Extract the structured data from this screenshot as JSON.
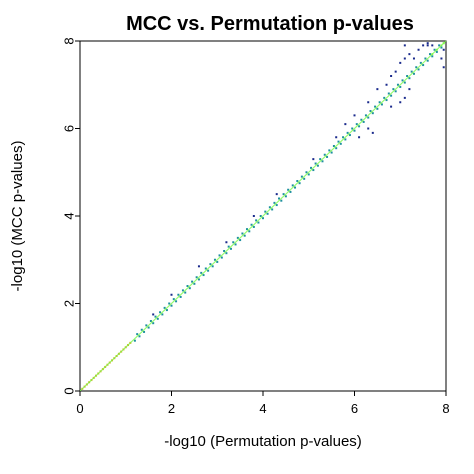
{
  "chart_data": {
    "type": "scatter",
    "title": "MCC vs. Permutation p-values",
    "xlabel": "-log10 (Permutation p-values)",
    "ylabel": "-log10 (MCC p-values)",
    "xlim": [
      0,
      8
    ],
    "ylim": [
      0,
      8
    ],
    "x_ticks": [
      0,
      2,
      4,
      6,
      8
    ],
    "y_ticks": [
      0,
      2,
      4,
      6,
      8
    ],
    "grid": false,
    "reference_line": {
      "from": [
        0,
        0
      ],
      "to": [
        8,
        8
      ],
      "color": "#7CFC4C"
    },
    "colors": {
      "low": "#1a2a8c",
      "mid": "#1f8fa0",
      "high": "#8cf05a",
      "orange": "#e0a020"
    },
    "series": [
      {
        "points": [
          [
            0.05,
            0.05
          ],
          [
            0.1,
            0.1
          ],
          [
            0.15,
            0.15
          ],
          [
            0.2,
            0.2
          ],
          [
            0.25,
            0.25
          ],
          [
            0.3,
            0.3
          ],
          [
            0.35,
            0.35
          ],
          [
            0.4,
            0.4
          ],
          [
            0.45,
            0.45
          ],
          [
            0.5,
            0.5
          ],
          [
            0.55,
            0.55
          ],
          [
            0.6,
            0.6
          ],
          [
            0.65,
            0.65
          ],
          [
            0.7,
            0.7
          ],
          [
            0.75,
            0.75
          ],
          [
            0.8,
            0.8
          ],
          [
            0.85,
            0.85
          ],
          [
            0.9,
            0.9
          ],
          [
            0.95,
            0.95
          ],
          [
            1.0,
            1.0
          ],
          [
            1.05,
            1.05
          ],
          [
            1.1,
            1.1
          ],
          [
            1.2,
            1.15
          ],
          [
            1.25,
            1.3
          ],
          [
            1.3,
            1.25
          ],
          [
            1.35,
            1.4
          ],
          [
            1.4,
            1.35
          ],
          [
            1.45,
            1.5
          ],
          [
            1.5,
            1.45
          ],
          [
            1.55,
            1.6
          ],
          [
            1.6,
            1.55
          ],
          [
            1.65,
            1.7
          ],
          [
            1.7,
            1.65
          ],
          [
            1.75,
            1.8
          ],
          [
            1.8,
            1.75
          ],
          [
            1.85,
            1.9
          ],
          [
            1.9,
            1.85
          ],
          [
            1.95,
            2.0
          ],
          [
            2.0,
            1.95
          ],
          [
            2.05,
            2.1
          ],
          [
            2.1,
            2.05
          ],
          [
            2.15,
            2.2
          ],
          [
            2.2,
            2.15
          ],
          [
            2.25,
            2.3
          ],
          [
            2.3,
            2.25
          ],
          [
            2.35,
            2.4
          ],
          [
            2.4,
            2.35
          ],
          [
            2.45,
            2.5
          ],
          [
            2.5,
            2.45
          ],
          [
            2.55,
            2.6
          ],
          [
            2.6,
            2.55
          ],
          [
            2.65,
            2.7
          ],
          [
            2.7,
            2.65
          ],
          [
            2.75,
            2.8
          ],
          [
            2.8,
            2.75
          ],
          [
            2.85,
            2.9
          ],
          [
            2.9,
            2.85
          ],
          [
            2.95,
            3.0
          ],
          [
            3.0,
            2.95
          ],
          [
            3.05,
            3.1
          ],
          [
            3.1,
            3.05
          ],
          [
            3.15,
            3.2
          ],
          [
            3.2,
            3.15
          ],
          [
            3.25,
            3.3
          ],
          [
            3.3,
            3.25
          ],
          [
            3.35,
            3.4
          ],
          [
            3.4,
            3.35
          ],
          [
            3.45,
            3.5
          ],
          [
            3.5,
            3.45
          ],
          [
            3.55,
            3.6
          ],
          [
            3.6,
            3.55
          ],
          [
            3.65,
            3.7
          ],
          [
            3.7,
            3.65
          ],
          [
            3.75,
            3.8
          ],
          [
            3.8,
            3.75
          ],
          [
            3.85,
            3.9
          ],
          [
            3.9,
            3.85
          ],
          [
            3.95,
            4.0
          ],
          [
            4.0,
            3.95
          ],
          [
            4.05,
            4.1
          ],
          [
            4.1,
            4.05
          ],
          [
            4.15,
            4.2
          ],
          [
            4.2,
            4.15
          ],
          [
            4.25,
            4.3
          ],
          [
            4.3,
            4.25
          ],
          [
            4.35,
            4.4
          ],
          [
            4.4,
            4.35
          ],
          [
            4.45,
            4.5
          ],
          [
            4.5,
            4.45
          ],
          [
            4.55,
            4.6
          ],
          [
            4.6,
            4.55
          ],
          [
            4.65,
            4.7
          ],
          [
            4.7,
            4.65
          ],
          [
            4.75,
            4.8
          ],
          [
            4.8,
            4.75
          ],
          [
            4.85,
            4.9
          ],
          [
            4.9,
            4.85
          ],
          [
            4.95,
            5.0
          ],
          [
            5.0,
            4.95
          ],
          [
            5.05,
            5.1
          ],
          [
            5.1,
            5.05
          ],
          [
            5.15,
            5.2
          ],
          [
            5.2,
            5.15
          ],
          [
            5.25,
            5.3
          ],
          [
            5.3,
            5.25
          ],
          [
            5.35,
            5.4
          ],
          [
            5.4,
            5.35
          ],
          [
            5.45,
            5.5
          ],
          [
            5.5,
            5.45
          ],
          [
            5.55,
            5.6
          ],
          [
            5.6,
            5.55
          ],
          [
            5.65,
            5.7
          ],
          [
            5.7,
            5.65
          ],
          [
            5.75,
            5.8
          ],
          [
            5.8,
            5.75
          ],
          [
            5.85,
            5.9
          ],
          [
            5.9,
            5.85
          ],
          [
            5.95,
            6.0
          ],
          [
            6.0,
            5.95
          ],
          [
            6.05,
            6.1
          ],
          [
            6.1,
            6.05
          ],
          [
            6.15,
            6.2
          ],
          [
            6.2,
            6.15
          ],
          [
            6.25,
            6.3
          ],
          [
            6.3,
            6.25
          ],
          [
            6.35,
            6.4
          ],
          [
            6.4,
            6.35
          ],
          [
            6.45,
            6.5
          ],
          [
            6.5,
            6.45
          ],
          [
            6.55,
            6.6
          ],
          [
            6.6,
            6.55
          ],
          [
            6.65,
            6.7
          ],
          [
            6.7,
            6.65
          ],
          [
            6.75,
            6.8
          ],
          [
            6.8,
            6.75
          ],
          [
            6.85,
            6.9
          ],
          [
            6.9,
            6.85
          ],
          [
            6.95,
            7.0
          ],
          [
            7.0,
            6.95
          ],
          [
            7.05,
            7.1
          ],
          [
            7.1,
            7.05
          ],
          [
            7.15,
            7.2
          ],
          [
            7.2,
            7.15
          ],
          [
            7.25,
            7.3
          ],
          [
            7.3,
            7.25
          ],
          [
            7.35,
            7.4
          ],
          [
            7.4,
            7.35
          ],
          [
            7.45,
            7.5
          ],
          [
            7.5,
            7.45
          ],
          [
            7.55,
            7.6
          ],
          [
            7.6,
            7.55
          ],
          [
            7.65,
            7.7
          ],
          [
            7.7,
            7.65
          ],
          [
            7.75,
            7.8
          ],
          [
            7.8,
            7.75
          ],
          [
            7.85,
            7.9
          ],
          [
            7.9,
            7.85
          ],
          [
            7.95,
            7.95
          ],
          [
            1.6,
            1.75
          ],
          [
            2.0,
            2.2
          ],
          [
            2.6,
            2.85
          ],
          [
            3.2,
            3.4
          ],
          [
            3.8,
            4.0
          ],
          [
            4.3,
            4.5
          ],
          [
            5.1,
            5.3
          ],
          [
            5.6,
            5.8
          ],
          [
            6.0,
            6.3
          ],
          [
            6.3,
            6.6
          ],
          [
            6.5,
            6.9
          ],
          [
            6.7,
            7.0
          ],
          [
            6.8,
            7.2
          ],
          [
            6.9,
            7.3
          ],
          [
            7.0,
            7.5
          ],
          [
            7.1,
            7.6
          ],
          [
            7.2,
            7.7
          ],
          [
            7.3,
            7.6
          ],
          [
            7.4,
            7.8
          ],
          [
            7.5,
            7.9
          ],
          [
            7.6,
            7.9
          ],
          [
            7.7,
            7.9
          ],
          [
            7.8,
            7.8
          ],
          [
            6.1,
            5.8
          ],
          [
            6.3,
            6.0
          ],
          [
            6.8,
            6.5
          ],
          [
            7.0,
            6.6
          ],
          [
            7.2,
            6.9
          ],
          [
            5.8,
            6.1
          ],
          [
            7.1,
            7.9
          ],
          [
            7.6,
            7.95
          ],
          [
            7.7,
            7.7
          ],
          [
            7.9,
            7.6
          ],
          [
            7.95,
            7.4
          ],
          [
            7.95,
            7.8
          ],
          [
            7.95,
            7.95
          ],
          [
            7.9,
            7.9
          ],
          [
            6.4,
            5.9
          ],
          [
            7.1,
            6.7
          ]
        ]
      }
    ]
  }
}
